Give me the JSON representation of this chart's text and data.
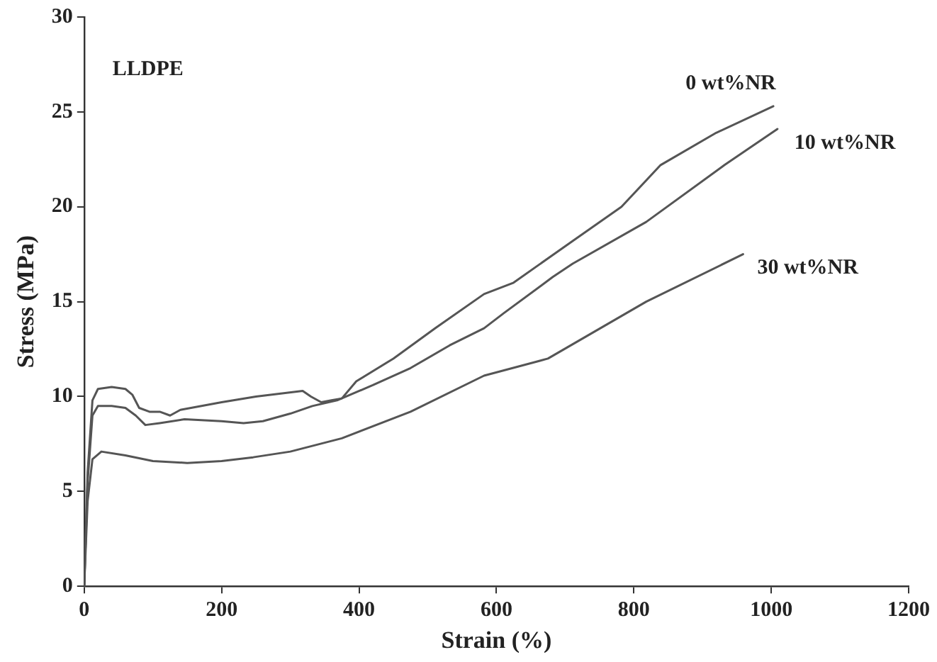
{
  "chart_data": {
    "type": "line",
    "xlabel": "Strain (%)",
    "ylabel": "Stress (MPa)",
    "annotations": [
      "LLDPE"
    ],
    "xlim": [
      0,
      1200
    ],
    "xticks": [
      0,
      200,
      400,
      600,
      800,
      1000,
      1200
    ],
    "ylim": [
      0,
      30
    ],
    "yticks": [
      0,
      5,
      10,
      15,
      20,
      25,
      30
    ],
    "grid": false,
    "legend": false,
    "marker": "none",
    "line_style": "solid",
    "series": [
      {
        "name": "0 wt%NR",
        "color": "#555555",
        "x": [
          0,
          5,
          12,
          20,
          40,
          60,
          70,
          80,
          95,
          110,
          125,
          140,
          200,
          250,
          318,
          330,
          345,
          360,
          375,
          396,
          450,
          511,
          582,
          625,
          711,
          782,
          839,
          920,
          1003
        ],
        "values": [
          0,
          6,
          9.8,
          10.4,
          10.5,
          10.4,
          10.1,
          9.4,
          9.2,
          9.2,
          9.0,
          9.3,
          9.7,
          10.0,
          10.3,
          10.0,
          9.7,
          9.8,
          9.9,
          10.8,
          12.0,
          13.6,
          15.4,
          16.0,
          18.2,
          20.0,
          22.2,
          23.9,
          25.3
        ]
      },
      {
        "name": "10 wt%NR",
        "color": "#555555",
        "x": [
          0,
          5,
          12,
          20,
          40,
          60,
          75,
          89,
          110,
          146,
          200,
          232,
          260,
          300,
          332,
          368,
          420,
          475,
          532,
          582,
          611,
          682,
          711,
          818,
          932,
          1009
        ],
        "values": [
          0,
          5.5,
          9.0,
          9.5,
          9.5,
          9.4,
          9.0,
          8.5,
          8.6,
          8.8,
          8.7,
          8.6,
          8.7,
          9.1,
          9.5,
          9.8,
          10.6,
          11.5,
          12.7,
          13.6,
          14.4,
          16.3,
          17.0,
          19.2,
          22.2,
          24.1
        ]
      },
      {
        "name": "30 wt%NR",
        "color": "#555555",
        "x": [
          0,
          5,
          12,
          25,
          60,
          100,
          150,
          200,
          246,
          300,
          375,
          475,
          582,
          675,
          818,
          959
        ],
        "values": [
          0,
          4.5,
          6.7,
          7.1,
          6.9,
          6.6,
          6.5,
          6.6,
          6.8,
          7.1,
          7.8,
          9.2,
          11.1,
          12.0,
          15.0,
          17.5
        ]
      }
    ]
  }
}
